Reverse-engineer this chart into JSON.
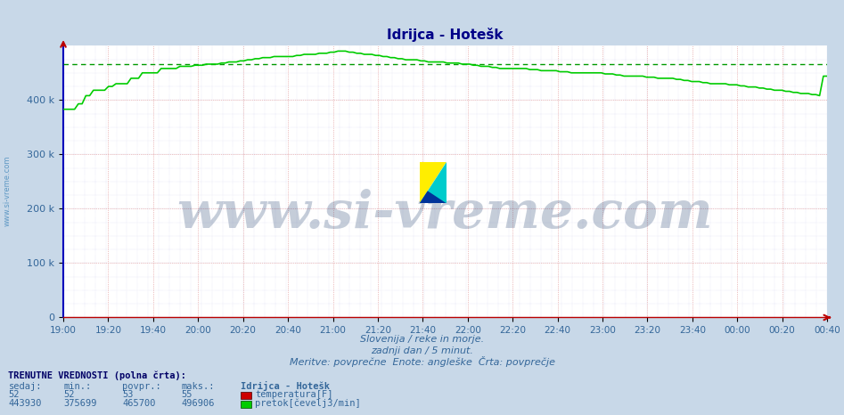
{
  "title": "Idrijca - Hotešk",
  "xlabel_lines": [
    "Slovenija / reke in morje.",
    "zadnji dan / 5 minut.",
    "Meritve: povprečne  Enote: angleške  Črta: povprečje"
  ],
  "bg_color": "#c8d8e8",
  "plot_bg_color": "#ffffff",
  "ylim": [
    0,
    500000
  ],
  "yticks": [
    0,
    100000,
    200000,
    300000,
    400000
  ],
  "ytick_labels": [
    "0",
    "100 k",
    "200 k",
    "300 k",
    "400 k"
  ],
  "xtick_labels": [
    "19:00",
    "19:20",
    "19:40",
    "20:00",
    "20:20",
    "20:40",
    "21:00",
    "21:20",
    "21:40",
    "22:00",
    "22:20",
    "22:40",
    "23:00",
    "23:20",
    "23:40",
    "00:00",
    "00:20",
    "00:40"
  ],
  "flow_color": "#00cc00",
  "avg_line_color": "#009900",
  "avg_value": 465700,
  "flow_data": [
    383000,
    383000,
    383000,
    383000,
    393000,
    393000,
    408000,
    408000,
    418000,
    418000,
    418000,
    418000,
    425000,
    425000,
    430000,
    430000,
    430000,
    430000,
    440000,
    440000,
    440000,
    450000,
    450000,
    450000,
    450000,
    450000,
    458000,
    458000,
    458000,
    458000,
    458000,
    462000,
    462000,
    462000,
    462000,
    464000,
    464000,
    464000,
    466000,
    466000,
    466000,
    466000,
    468000,
    468000,
    470000,
    470000,
    470000,
    472000,
    472000,
    474000,
    474000,
    476000,
    476000,
    478000,
    478000,
    478000,
    480000,
    480000,
    480000,
    480000,
    480000,
    480000,
    482000,
    482000,
    484000,
    484000,
    484000,
    484000,
    486000,
    486000,
    486000,
    488000,
    488000,
    490000,
    490000,
    490000,
    488000,
    488000,
    486000,
    486000,
    484000,
    484000,
    484000,
    482000,
    482000,
    480000,
    480000,
    478000,
    478000,
    476000,
    476000,
    474000,
    474000,
    474000,
    474000,
    472000,
    472000,
    470000,
    470000,
    470000,
    470000,
    470000,
    468000,
    468000,
    468000,
    468000,
    466000,
    466000,
    466000,
    464000,
    464000,
    462000,
    462000,
    462000,
    460000,
    460000,
    458000,
    458000,
    458000,
    458000,
    458000,
    458000,
    458000,
    458000,
    456000,
    456000,
    456000,
    454000,
    454000,
    454000,
    454000,
    454000,
    452000,
    452000,
    452000,
    450000,
    450000,
    450000,
    450000,
    450000,
    450000,
    450000,
    450000,
    450000,
    448000,
    448000,
    448000,
    446000,
    446000,
    444000,
    444000,
    444000,
    444000,
    444000,
    444000,
    442000,
    442000,
    442000,
    440000,
    440000,
    440000,
    440000,
    440000,
    438000,
    438000,
    436000,
    436000,
    434000,
    434000,
    434000,
    432000,
    432000,
    430000,
    430000,
    430000,
    430000,
    430000,
    428000,
    428000,
    428000,
    426000,
    426000,
    424000,
    424000,
    424000,
    422000,
    422000,
    420000,
    420000,
    418000,
    418000,
    418000,
    416000,
    416000,
    414000,
    414000,
    412000,
    412000,
    412000,
    410000,
    410000,
    408000,
    443930,
    443930
  ],
  "temperature_color": "#cc0000",
  "watermark_text": "www.si-vreme.com",
  "watermark_color": "#1a3a6a",
  "watermark_alpha": 0.25,
  "watermark_fontsize": 42,
  "sidebar_text": "www.si-vreme.com",
  "sidebar_color": "#4488bb"
}
